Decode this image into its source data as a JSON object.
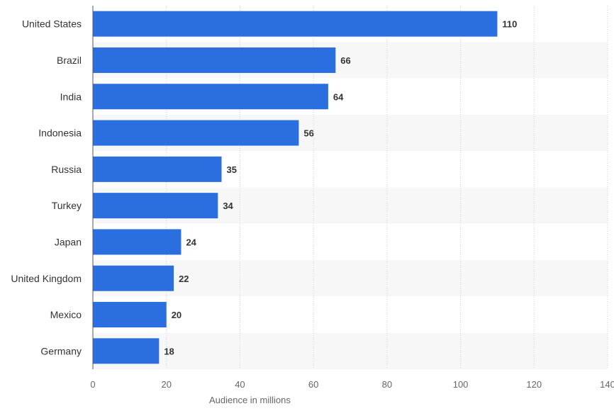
{
  "chart_data": {
    "type": "bar",
    "orientation": "horizontal",
    "categories": [
      "United States",
      "Brazil",
      "India",
      "Indonesia",
      "Russia",
      "Turkey",
      "Japan",
      "United Kingdom",
      "Mexico",
      "Germany"
    ],
    "values": [
      110,
      66,
      64,
      56,
      35,
      34,
      24,
      22,
      20,
      18
    ],
    "value_labels": [
      "110",
      "66",
      "64",
      "56",
      "35",
      "34",
      "24",
      "22",
      "20",
      "18"
    ],
    "xlabel": "Audience in millions",
    "xlim": [
      0,
      140
    ],
    "xticks": [
      0,
      20,
      40,
      60,
      80,
      100,
      120,
      140
    ],
    "xtick_labels": [
      "0",
      "20",
      "40",
      "60",
      "80",
      "100",
      "120",
      "140"
    ],
    "grid": "vertical dotted",
    "bar_color": "#2a6ee0",
    "alt_row_color": "#f7f7f7"
  }
}
